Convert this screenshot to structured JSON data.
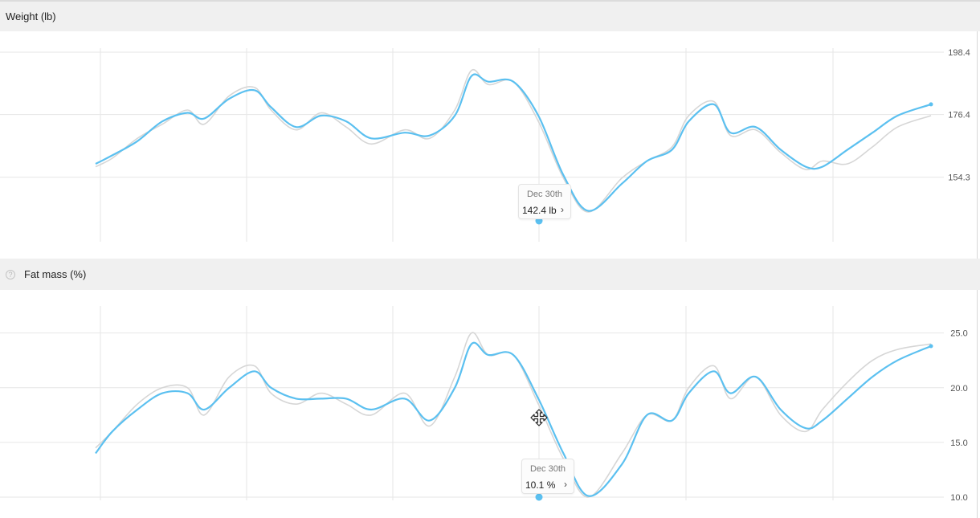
{
  "panels": [
    {
      "title": "Weight (lb)"
    },
    {
      "title": "Fat mass (%)",
      "help_icon": "question-circle-icon"
    }
  ],
  "tooltips": [
    {
      "date": "Dec 30th",
      "value": "142.4 lb",
      "chevron": "›"
    },
    {
      "date": "Dec 30th",
      "value": "10.1 %",
      "chevron": "›"
    }
  ],
  "colors": {
    "series": "#5bc0f0",
    "raw": "#d6d6d6",
    "grid": "#e6e6e6",
    "header_bg": "#f0f0f0"
  },
  "cursor_icon": "move-cursor-icon",
  "chart_data": [
    {
      "type": "line",
      "title": "Weight (lb)",
      "ylim": [
        131.8,
        198.4
      ],
      "y_ticks": [
        "198.4",
        "176.4",
        "154.3"
      ],
      "y_tick_values": [
        198.4,
        176.4,
        154.3
      ],
      "grid": true,
      "x": [
        0,
        0.02,
        0.05,
        0.08,
        0.11,
        0.13,
        0.16,
        0.19,
        0.21,
        0.24,
        0.27,
        0.3,
        0.33,
        0.37,
        0.4,
        0.43,
        0.45,
        0.47,
        0.5,
        0.53,
        0.56,
        0.59,
        0.63,
        0.66,
        0.69,
        0.71,
        0.74,
        0.76,
        0.79,
        0.82,
        0.85,
        0.87,
        0.9,
        0.93,
        0.96,
        1.0
      ],
      "series": [
        {
          "values": [
            159,
            162,
            167,
            174,
            177,
            175,
            182,
            185,
            179,
            172,
            176,
            174,
            168,
            170,
            169,
            176,
            190,
            188,
            188,
            176,
            155,
            142.4,
            152,
            160,
            164,
            174,
            180,
            170,
            172,
            164,
            158,
            158,
            164,
            170,
            176,
            180
          ]
        },
        {
          "values": [
            158,
            161,
            168,
            173,
            178,
            173,
            183,
            186,
            178,
            171,
            177,
            172,
            166,
            171,
            168,
            178,
            192,
            187,
            188,
            174,
            154,
            142,
            154,
            160,
            165,
            176,
            181,
            169,
            171,
            163,
            157,
            160,
            159,
            165,
            172,
            176
          ]
        }
      ]
    },
    {
      "type": "line",
      "title": "Fat mass (%)",
      "ylim": [
        10.0,
        26.0
      ],
      "y_ticks": [
        "25.0",
        "20.0",
        "15.0",
        "10.0"
      ],
      "y_tick_values": [
        25.0,
        20.0,
        15.0,
        10.0
      ],
      "grid": true,
      "x": [
        0,
        0.02,
        0.05,
        0.08,
        0.11,
        0.13,
        0.16,
        0.19,
        0.21,
        0.24,
        0.27,
        0.3,
        0.33,
        0.37,
        0.4,
        0.43,
        0.45,
        0.47,
        0.5,
        0.53,
        0.56,
        0.59,
        0.63,
        0.66,
        0.69,
        0.71,
        0.74,
        0.76,
        0.79,
        0.82,
        0.85,
        0.87,
        0.9,
        0.93,
        0.96,
        1.0
      ],
      "series": [
        {
          "values": [
            14,
            16,
            18,
            19.5,
            19.5,
            18,
            20,
            21.5,
            20,
            19,
            19,
            19,
            18,
            19,
            17,
            20,
            24,
            23,
            23,
            19,
            14,
            10.1,
            13,
            17.5,
            17,
            19.5,
            21.5,
            19.5,
            21,
            18,
            16.3,
            17,
            19,
            21,
            22.5,
            23.8
          ]
        },
        {
          "values": [
            14.5,
            16,
            18.5,
            20,
            20,
            17.5,
            21,
            22,
            19.5,
            18.5,
            19.5,
            18.5,
            17.5,
            19.5,
            16.5,
            21,
            25,
            23,
            23,
            18.5,
            13.5,
            10,
            14,
            17.5,
            17,
            20,
            22,
            19,
            21,
            17.5,
            16,
            18,
            20.5,
            22.5,
            23.5,
            24
          ]
        }
      ]
    }
  ]
}
